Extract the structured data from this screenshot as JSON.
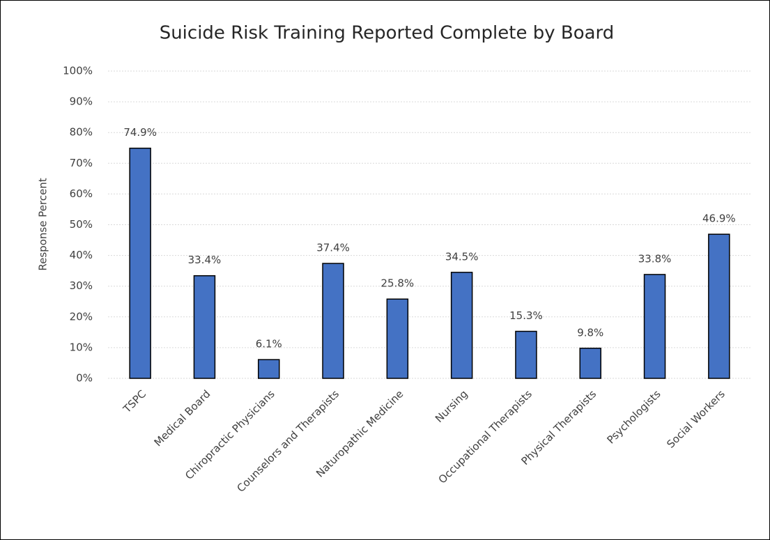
{
  "chart_data": {
    "type": "bar",
    "title": "Suicide Risk Training Reported Complete by Board",
    "y_label": "Response Percent",
    "categories": [
      "TSPC",
      "Medical Board",
      "Chiropractic Physicians",
      "Counselors and Therapists",
      "Naturopathic Medicine",
      "Nursing",
      "Occupational Therapists",
      "Physical Therapists",
      "Psychologists",
      "Social Workers"
    ],
    "values": [
      74.9,
      33.4,
      6.1,
      37.4,
      25.8,
      34.5,
      15.3,
      9.8,
      33.8,
      46.9
    ],
    "value_labels": [
      "74.9%",
      "33.4%",
      "6.1%",
      "37.4%",
      "25.8%",
      "34.5%",
      "15.3%",
      "9.8%",
      "33.8%",
      "46.9%"
    ],
    "color": "#4472c4",
    "ylim": [
      0,
      100
    ],
    "yticks": [
      {
        "value": 0,
        "label": "0%"
      },
      {
        "value": 10,
        "label": "10%"
      },
      {
        "value": 20,
        "label": "20%"
      },
      {
        "value": 30,
        "label": "30%"
      },
      {
        "value": 40,
        "label": "40%"
      },
      {
        "value": 50,
        "label": "50%"
      },
      {
        "value": 60,
        "label": "60%"
      },
      {
        "value": 70,
        "label": "70%"
      },
      {
        "value": 80,
        "label": "80%"
      },
      {
        "value": 90,
        "label": "90%"
      },
      {
        "value": 100,
        "label": "100%"
      }
    ],
    "grid": true
  }
}
